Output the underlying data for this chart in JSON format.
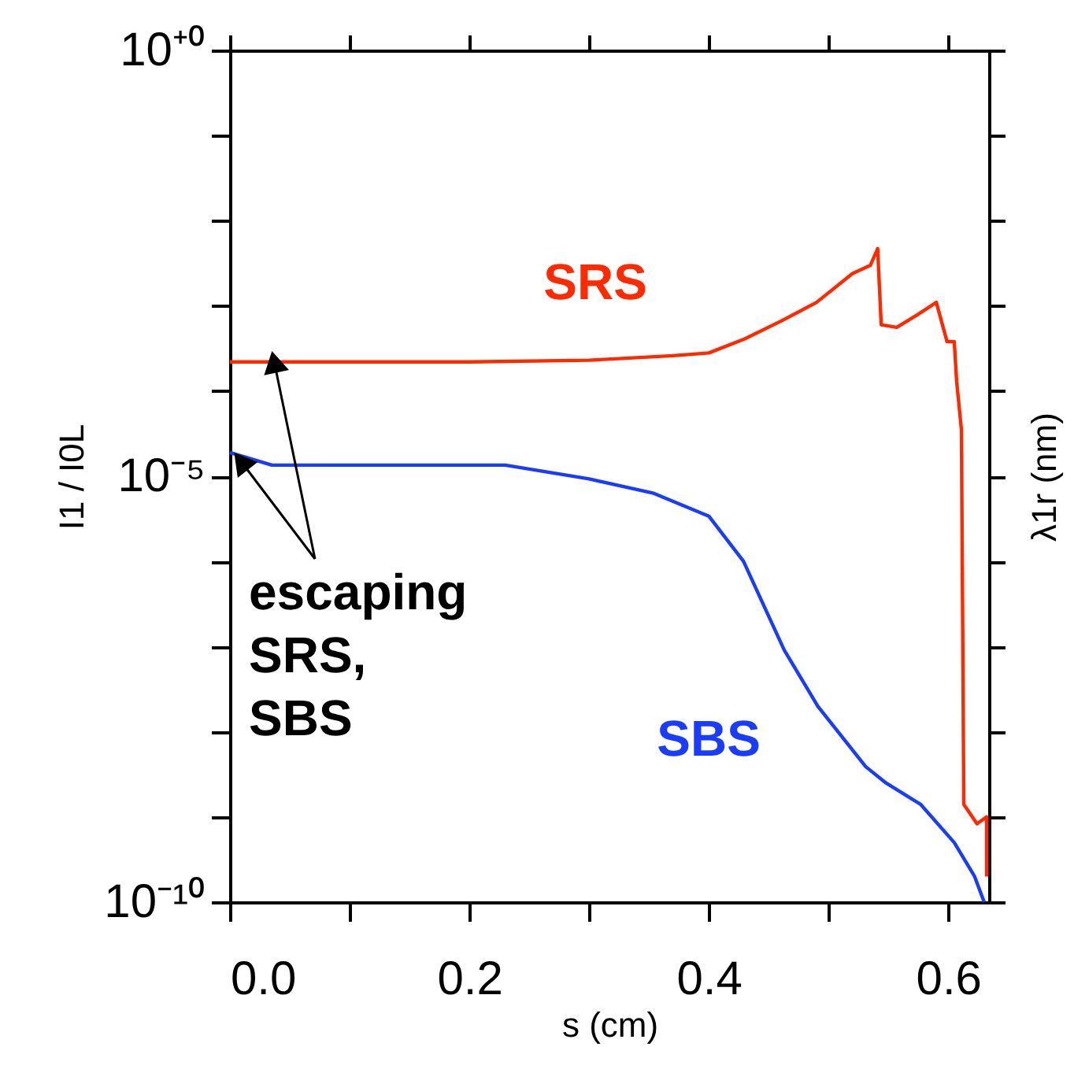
{
  "chart_data": {
    "type": "line",
    "xlabel": "s  (cm)",
    "ylabel": "I1 / I0L",
    "y2label": "λ1r  (nm)",
    "log": "y",
    "grid": false,
    "legend": false,
    "marker": "none",
    "line_style": "solid",
    "xlim": [
      0,
      0.634
    ],
    "ylim": [
      1e-10,
      1
    ],
    "xticks": [
      {
        "value": 0,
        "label": "0.0"
      },
      {
        "value": 0.1,
        "label": null
      },
      0.2,
      {
        "value": 0.3,
        "label": null
      },
      0.4,
      {
        "value": 0.5,
        "label": null
      },
      0.6
    ],
    "yticks": [
      {
        "value": 1,
        "label": "10⁺⁰"
      },
      {
        "value": 0.1,
        "label": null
      },
      {
        "value": 0.01,
        "label": null
      },
      {
        "value": 0.001,
        "label": null
      },
      {
        "value": 0.0001,
        "label": null
      },
      {
        "value": 1e-05,
        "label": "10⁻⁵"
      },
      {
        "value": 1e-06,
        "label": null
      },
      {
        "value": 1e-07,
        "label": null
      },
      {
        "value": 1e-08,
        "label": null
      },
      {
        "value": 1e-09,
        "label": null
      },
      {
        "value": 1e-10,
        "label": "10⁻¹⁰"
      }
    ],
    "series": [
      {
        "name": "SRS",
        "color": "#ff2a00",
        "x": [
          0,
          0.2,
          0.3,
          0.37,
          0.4,
          0.43,
          0.46,
          0.49,
          0.52,
          0.535,
          0.541,
          0.544,
          0.557,
          0.575,
          0.59,
          0.599,
          0.605,
          0.607,
          0.611,
          0.612,
          0.613,
          0.624,
          0.632,
          0.632
        ],
        "values": [
          0.00022,
          0.00022,
          0.00023,
          0.00026,
          0.00028,
          0.00041,
          0.00066,
          0.0011,
          0.0024,
          0.003,
          0.0047,
          0.0006,
          0.00056,
          0.0008,
          0.0011,
          0.00038,
          0.00038,
          0.00013,
          3.5e-05,
          2.1e-07,
          1.4e-09,
          8.3e-10,
          1e-09,
          2e-10
        ]
      },
      {
        "name": "SBS",
        "color": "#1a3cff",
        "x": [
          0,
          0.035,
          0.23,
          0.3,
          0.354,
          0.4,
          0.429,
          0.463,
          0.491,
          0.531,
          0.548,
          0.577,
          0.605,
          0.622,
          0.63
        ],
        "values": [
          1.9e-05,
          1.35e-05,
          1.35e-05,
          9.3e-06,
          6.3e-06,
          3.4e-06,
          1e-06,
          9.1e-08,
          2e-08,
          3.9e-09,
          2.5e-09,
          1.4e-09,
          5e-10,
          2e-10,
          1e-10
        ]
      }
    ],
    "annotations": [
      {
        "text": "escaping\nSRS,\nSBS",
        "x": 0.037,
        "y": 0.00022
      }
    ]
  }
}
